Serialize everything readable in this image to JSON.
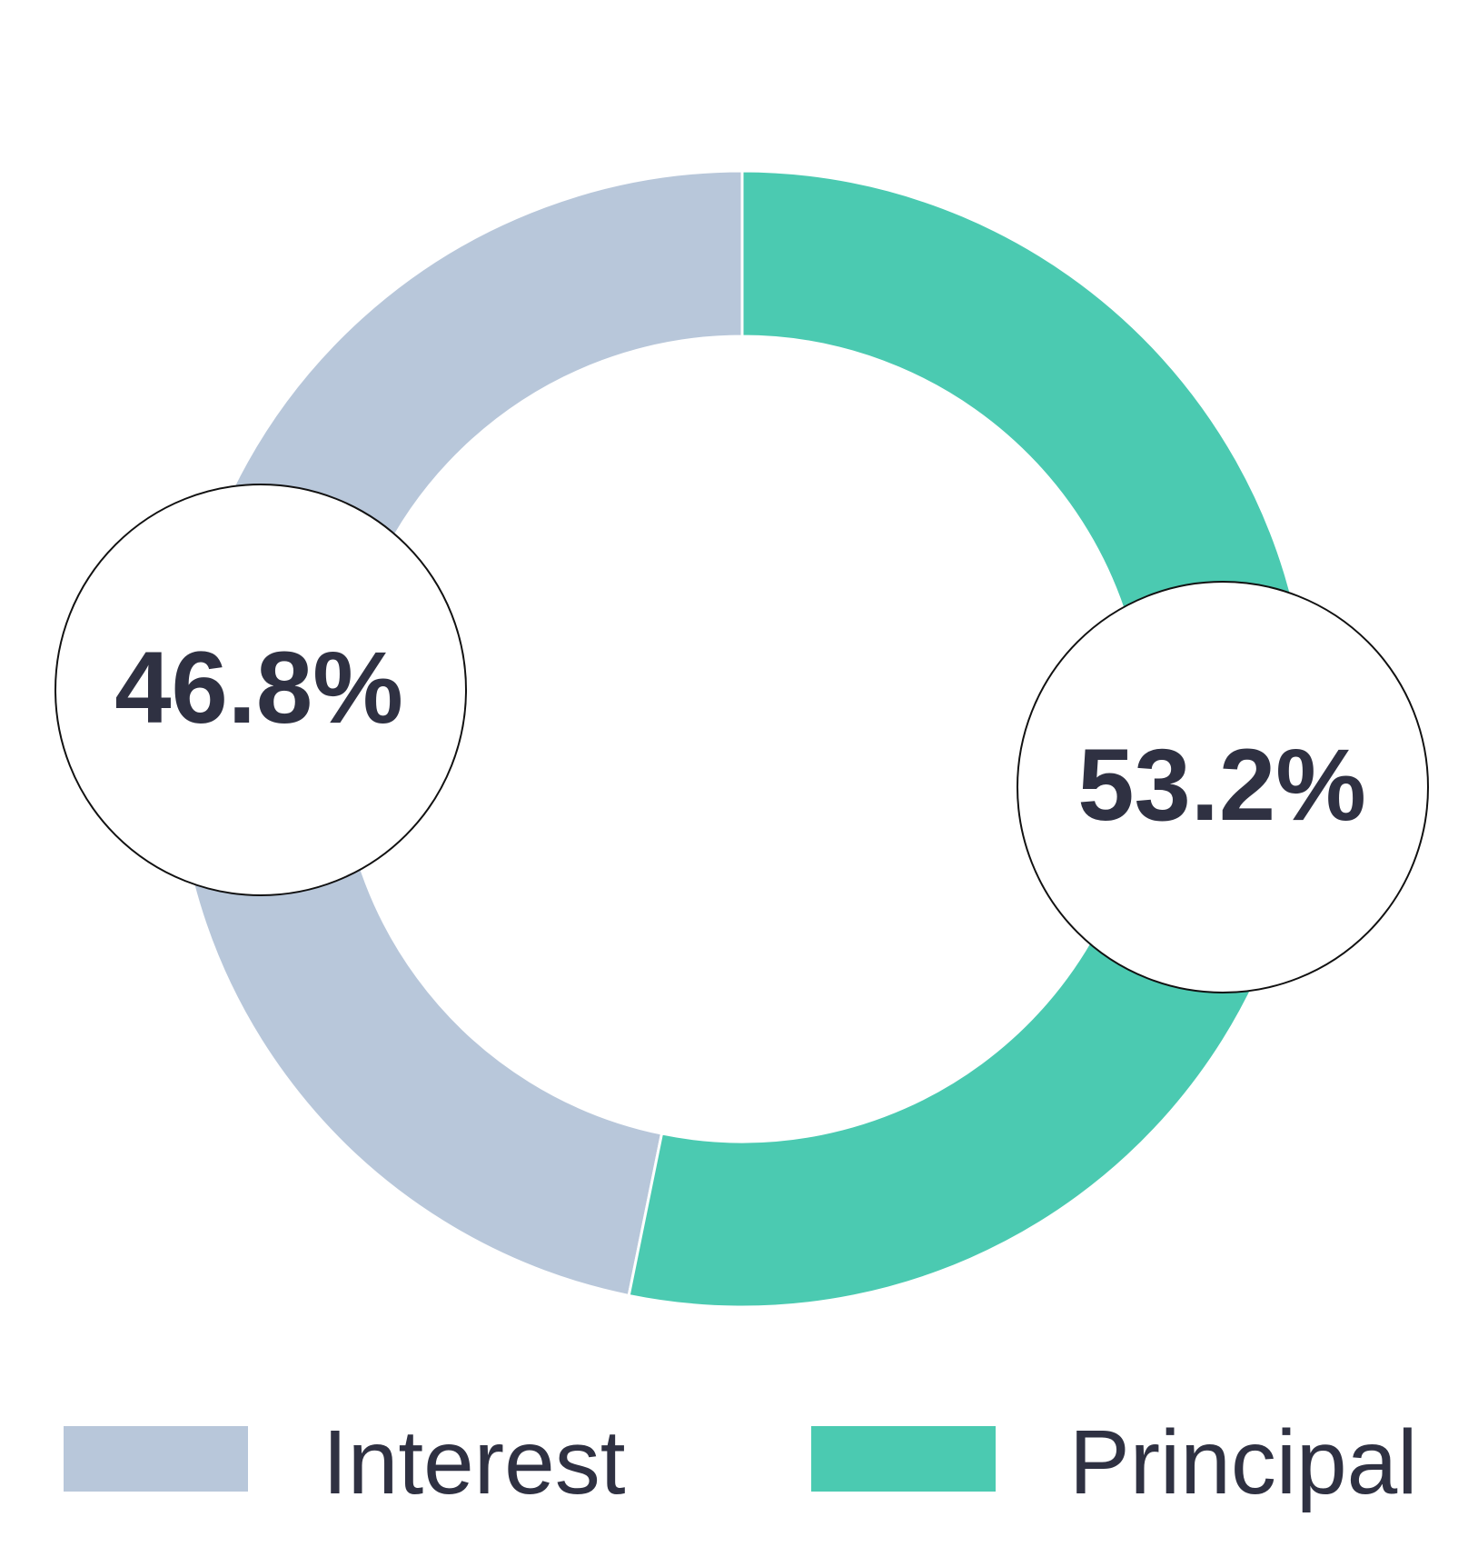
{
  "chart_data": {
    "type": "pie",
    "variant": "donut",
    "categories": [
      "Interest",
      "Principal"
    ],
    "values": [
      46.8,
      53.2
    ],
    "value_labels": [
      "46.8%",
      "53.2%"
    ],
    "colors": [
      "#b8c7da",
      "#4bcab1"
    ],
    "start_angle_deg": 0,
    "direction": "counterclockwise",
    "legend": {
      "position": "bottom",
      "items": [
        {
          "label": "Interest",
          "color": "#b8c7da"
        },
        {
          "label": "Principal",
          "color": "#4bcab1"
        }
      ]
    }
  }
}
